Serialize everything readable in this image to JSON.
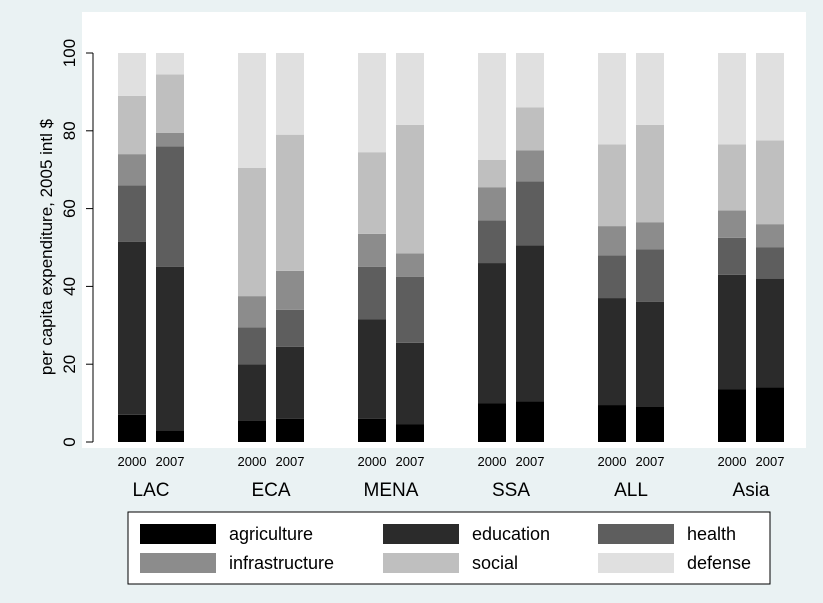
{
  "chart_data": {
    "type": "bar",
    "stacked": true,
    "ylabel": "per capita expenditure, 2005 intl $",
    "ylim": [
      0,
      100
    ],
    "yticks": [
      0,
      20,
      40,
      60,
      80,
      100
    ],
    "grid": false,
    "legend_position": "bottom",
    "groups": [
      {
        "label": "LAC",
        "bars": [
          {
            "year": "2000",
            "values": [
              7,
              44.5,
              14.5,
              8,
              15,
              11
            ]
          },
          {
            "year": "2007",
            "values": [
              3,
              42,
              31,
              3.5,
              15,
              5.5
            ]
          }
        ]
      },
      {
        "label": "ECA",
        "bars": [
          {
            "year": "2000",
            "values": [
              5.5,
              14.5,
              9.5,
              8,
              33,
              29.5
            ]
          },
          {
            "year": "2007",
            "values": [
              6,
              18.5,
              9.5,
              10,
              35,
              21
            ]
          }
        ]
      },
      {
        "label": "MENA",
        "bars": [
          {
            "year": "2000",
            "values": [
              6,
              25.5,
              13.5,
              8.5,
              21,
              25.5
            ]
          },
          {
            "year": "2007",
            "values": [
              4.5,
              21,
              17,
              6,
              33,
              18.5
            ]
          }
        ]
      },
      {
        "label": "SSA",
        "bars": [
          {
            "year": "2000",
            "values": [
              10,
              36,
              11,
              8.5,
              7,
              27.5
            ]
          },
          {
            "year": "2007",
            "values": [
              10.5,
              40,
              16.5,
              8,
              11,
              14
            ]
          }
        ]
      },
      {
        "label": "ALL",
        "bars": [
          {
            "year": "2000",
            "values": [
              9.5,
              27.5,
              11,
              7.5,
              21,
              23.5
            ]
          },
          {
            "year": "2007",
            "values": [
              9,
              27,
              13.5,
              7,
              25,
              18.5
            ]
          }
        ]
      },
      {
        "label": "Asia",
        "bars": [
          {
            "year": "2000",
            "values": [
              13.5,
              29.5,
              9.5,
              7,
              17,
              23.5
            ]
          },
          {
            "year": "2007",
            "values": [
              14,
              28,
              8,
              6,
              21.5,
              22.5
            ]
          }
        ]
      }
    ],
    "series": [
      {
        "name": "agriculture",
        "color": "#000000"
      },
      {
        "name": "education",
        "color": "#2b2b2b"
      },
      {
        "name": "health",
        "color": "#5e5e5e"
      },
      {
        "name": "infrastructure",
        "color": "#8c8c8c"
      },
      {
        "name": "social",
        "color": "#bfbfbf"
      },
      {
        "name": "defense",
        "color": "#e0e0e0"
      }
    ]
  }
}
